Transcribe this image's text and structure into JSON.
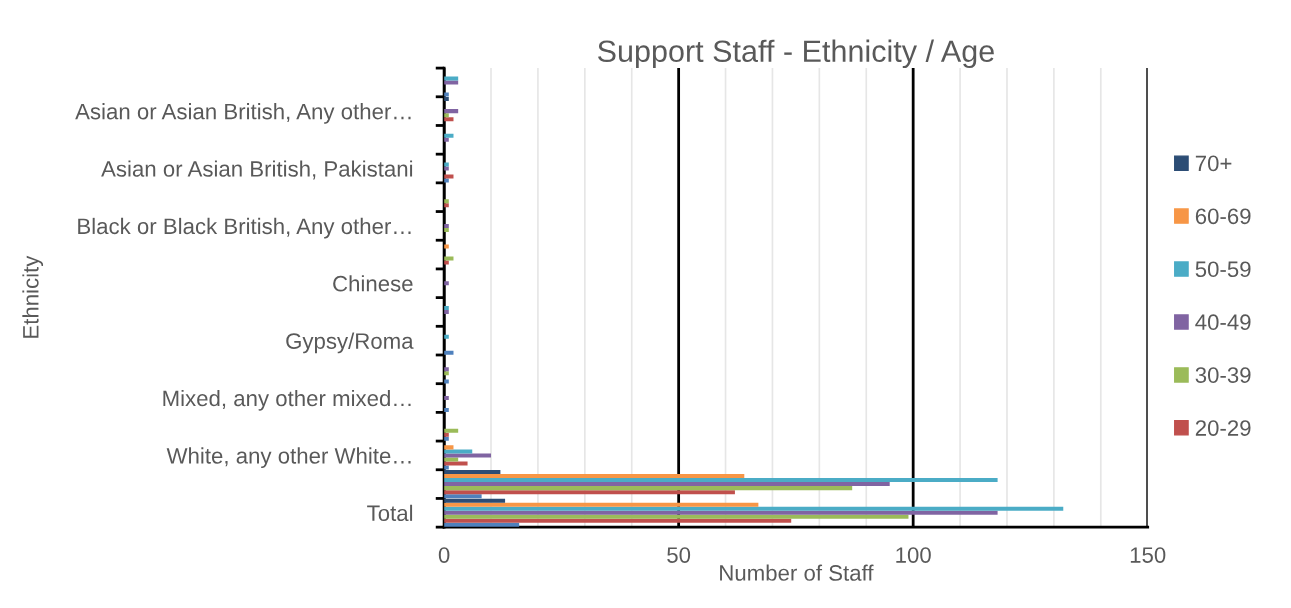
{
  "chart_data": {
    "type": "bar",
    "orientation": "horizontal",
    "title": "Support Staff - Ethnicity / Age",
    "xlabel": "Number of Staff",
    "ylabel": "Ethnicity",
    "categories": [
      null,
      "Asian or Asian British, Any other…",
      null,
      "Asian or Asian British, Pakistani",
      null,
      "Black or Black British, Any other…",
      null,
      "Chinese",
      null,
      "Gypsy/Roma",
      null,
      "Mixed, any other mixed…",
      null,
      "White, any other White…",
      null,
      "Total"
    ],
    "series": [
      {
        "color": "#4f81bd",
        "values": [
          1,
          0,
          0,
          1,
          0,
          0,
          0,
          0,
          0,
          2,
          1,
          1,
          1,
          1,
          8,
          16
        ]
      },
      {
        "name": "20-29",
        "color": "#c0504d",
        "values": [
          0,
          2,
          0,
          2,
          1,
          0,
          1,
          0,
          0,
          0,
          0,
          0,
          1,
          5,
          62,
          74
        ]
      },
      {
        "name": "30-39",
        "color": "#9bbb59",
        "values": [
          0,
          1,
          0,
          0,
          1,
          1,
          2,
          0,
          0,
          0,
          1,
          0,
          3,
          3,
          87,
          99
        ]
      },
      {
        "name": "40-49",
        "color": "#8064a2",
        "values": [
          3,
          3,
          1,
          1,
          0,
          1,
          0,
          1,
          1,
          0,
          1,
          1,
          0,
          10,
          95,
          118
        ]
      },
      {
        "name": "50-59",
        "color": "#4bacc6",
        "values": [
          3,
          0,
          2,
          1,
          0,
          0,
          0,
          0,
          1,
          1,
          0,
          0,
          0,
          6,
          118,
          132
        ]
      },
      {
        "name": "60-69",
        "color": "#f79646",
        "values": [
          0,
          0,
          0,
          0,
          0,
          0,
          1,
          0,
          0,
          0,
          0,
          0,
          0,
          2,
          64,
          67
        ]
      },
      {
        "name": "70+",
        "color": "#2c4d75",
        "values": [
          0,
          1,
          0,
          0,
          0,
          0,
          0,
          0,
          0,
          0,
          0,
          0,
          0,
          0,
          12,
          13
        ]
      }
    ],
    "xlim": [
      0,
      150
    ],
    "xticks": [
      0,
      {
        "value": 10,
        "label": null
      },
      {
        "value": 20,
        "label": null
      },
      {
        "value": 30,
        "label": null
      },
      {
        "value": 40,
        "label": null
      },
      50,
      {
        "value": 60,
        "label": null
      },
      {
        "value": 70,
        "label": null
      },
      {
        "value": 80,
        "label": null
      },
      {
        "value": 90,
        "label": null
      },
      100,
      {
        "value": 110,
        "label": null
      },
      {
        "value": 120,
        "label": null
      },
      {
        "value": 130,
        "label": null
      },
      {
        "value": 140,
        "label": null
      },
      150
    ],
    "grid": "x",
    "legend": "right"
  }
}
